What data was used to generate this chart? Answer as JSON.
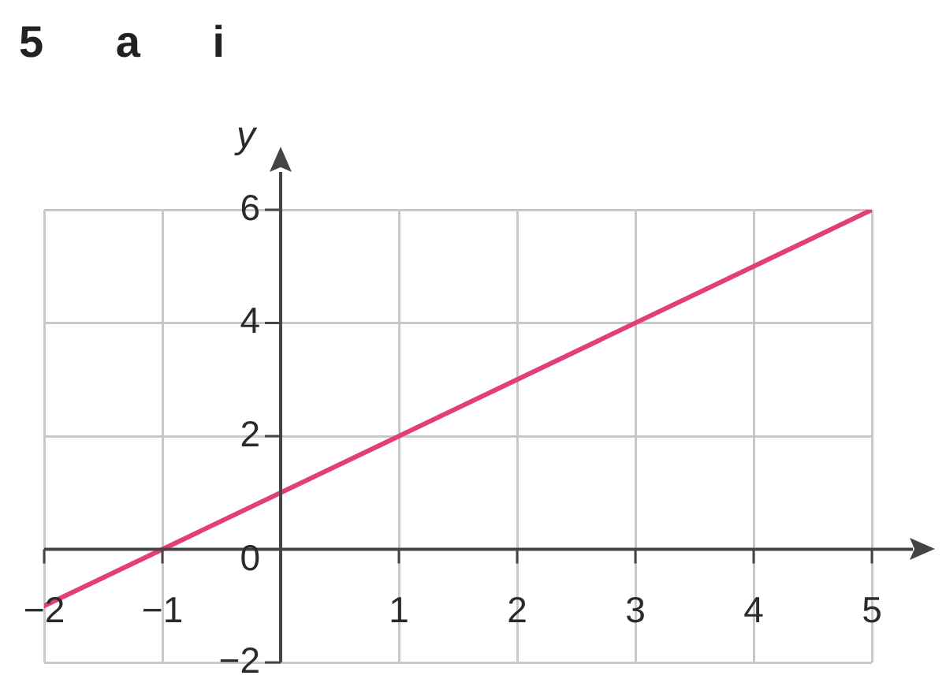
{
  "chart_data": {
    "type": "line",
    "title": "5 a i",
    "ylabel": "y",
    "x": [
      -2,
      5
    ],
    "series": [
      {
        "color": "#e23e7c",
        "values": [
          -1,
          6
        ]
      }
    ],
    "xlim": [
      -2,
      5
    ],
    "ylim": [
      -2,
      6
    ],
    "xticks": [
      {
        "value": -2,
        "label": "−2"
      },
      {
        "value": -1,
        "label": "−1"
      },
      {
        "value": 0,
        "label": null
      },
      1,
      2,
      3,
      4,
      5
    ],
    "yticks": [
      {
        "value": -2,
        "label": "−2"
      },
      0,
      2,
      4,
      6
    ],
    "grid": true,
    "marker": "none",
    "line_style": "solid"
  }
}
